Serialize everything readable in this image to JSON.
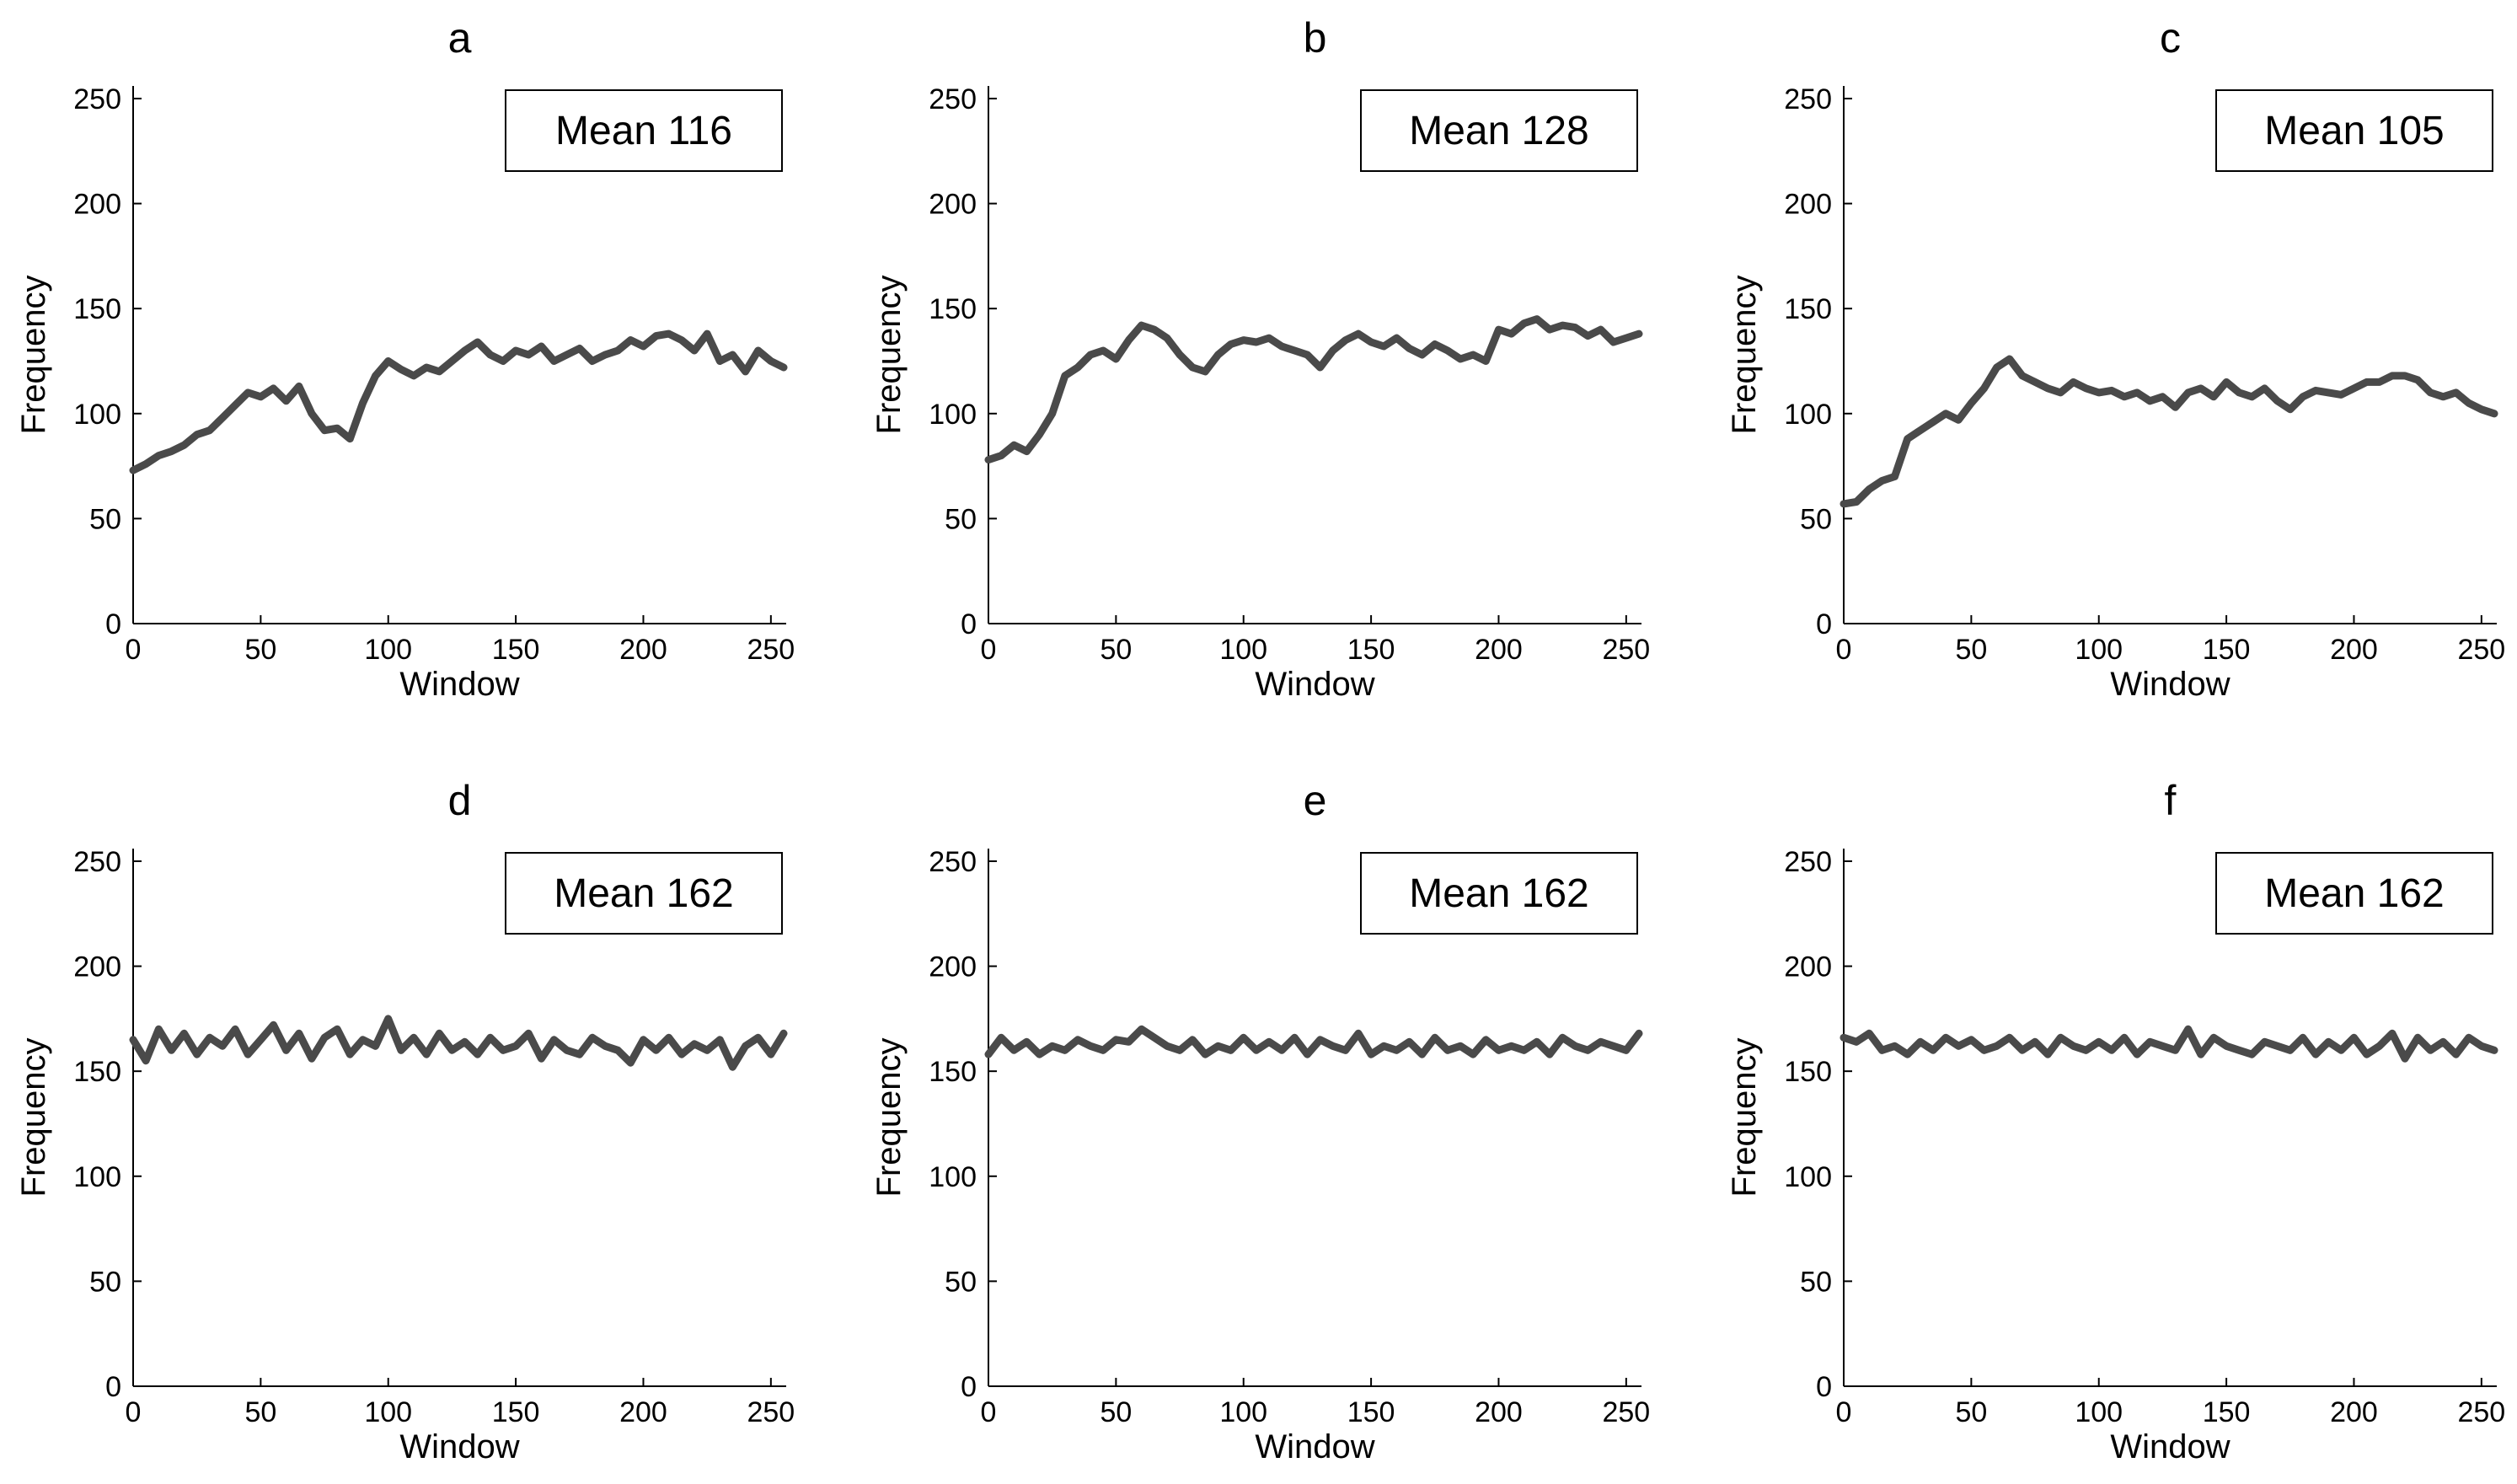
{
  "chart_data": [
    {
      "type": "line",
      "title": "a",
      "xlabel": "Window",
      "ylabel": "Frequency",
      "xlim": [
        0,
        256
      ],
      "ylim": [
        0,
        256
      ],
      "xticks": [
        "0",
        "50",
        "100",
        "150",
        "200",
        "250"
      ],
      "yticks": [
        "0",
        "50",
        "100",
        "150",
        "200",
        "250"
      ],
      "legend": "Mean 116",
      "series": [
        {
          "name": "Mean 116",
          "color": "#4a4a4a",
          "x": [
            0,
            5,
            10,
            15,
            20,
            25,
            30,
            35,
            40,
            45,
            50,
            55,
            60,
            65,
            70,
            75,
            80,
            85,
            90,
            95,
            100,
            105,
            110,
            115,
            120,
            125,
            130,
            135,
            140,
            145,
            150,
            155,
            160,
            165,
            170,
            175,
            180,
            185,
            190,
            195,
            200,
            205,
            210,
            215,
            220,
            225,
            230,
            235,
            240,
            245,
            250,
            255
          ],
          "y": [
            73,
            76,
            80,
            82,
            85,
            90,
            92,
            98,
            104,
            110,
            108,
            112,
            106,
            113,
            100,
            92,
            93,
            88,
            105,
            118,
            125,
            121,
            118,
            122,
            120,
            125,
            130,
            134,
            128,
            125,
            130,
            128,
            132,
            125,
            128,
            131,
            125,
            128,
            130,
            135,
            132,
            137,
            138,
            135,
            130,
            138,
            125,
            128,
            120,
            130,
            125,
            122
          ]
        }
      ]
    },
    {
      "type": "line",
      "title": "b",
      "xlabel": "Window",
      "ylabel": "Frequency",
      "xlim": [
        0,
        256
      ],
      "ylim": [
        0,
        256
      ],
      "xticks": [
        "0",
        "50",
        "100",
        "150",
        "200",
        "250"
      ],
      "yticks": [
        "0",
        "50",
        "100",
        "150",
        "200",
        "250"
      ],
      "legend": "Mean 128",
      "series": [
        {
          "name": "Mean 128",
          "color": "#4a4a4a",
          "x": [
            0,
            5,
            10,
            15,
            20,
            25,
            30,
            35,
            40,
            45,
            50,
            55,
            60,
            65,
            70,
            75,
            80,
            85,
            90,
            95,
            100,
            105,
            110,
            115,
            120,
            125,
            130,
            135,
            140,
            145,
            150,
            155,
            160,
            165,
            170,
            175,
            180,
            185,
            190,
            195,
            200,
            205,
            210,
            215,
            220,
            225,
            230,
            235,
            240,
            245,
            250,
            255
          ],
          "y": [
            78,
            80,
            85,
            82,
            90,
            100,
            118,
            122,
            128,
            130,
            126,
            135,
            142,
            140,
            136,
            128,
            122,
            120,
            128,
            133,
            135,
            134,
            136,
            132,
            130,
            128,
            122,
            130,
            135,
            138,
            134,
            132,
            136,
            131,
            128,
            133,
            130,
            126,
            128,
            125,
            140,
            138,
            143,
            145,
            140,
            142,
            141,
            137,
            140,
            134,
            136,
            138
          ]
        }
      ]
    },
    {
      "type": "line",
      "title": "c",
      "xlabel": "Window",
      "ylabel": "Frequency",
      "xlim": [
        0,
        256
      ],
      "ylim": [
        0,
        256
      ],
      "xticks": [
        "0",
        "50",
        "100",
        "150",
        "200",
        "250"
      ],
      "yticks": [
        "0",
        "50",
        "100",
        "150",
        "200",
        "250"
      ],
      "legend": "Mean 105",
      "series": [
        {
          "name": "Mean 105",
          "color": "#4a4a4a",
          "x": [
            0,
            5,
            10,
            15,
            20,
            25,
            30,
            35,
            40,
            45,
            50,
            55,
            60,
            65,
            70,
            75,
            80,
            85,
            90,
            95,
            100,
            105,
            110,
            115,
            120,
            125,
            130,
            135,
            140,
            145,
            150,
            155,
            160,
            165,
            170,
            175,
            180,
            185,
            190,
            195,
            200,
            205,
            210,
            215,
            220,
            225,
            230,
            235,
            240,
            245,
            250,
            255
          ],
          "y": [
            57,
            58,
            64,
            68,
            70,
            88,
            92,
            96,
            100,
            97,
            105,
            112,
            122,
            126,
            118,
            115,
            112,
            110,
            115,
            112,
            110,
            111,
            108,
            110,
            106,
            108,
            103,
            110,
            112,
            108,
            115,
            110,
            108,
            112,
            106,
            102,
            108,
            111,
            110,
            109,
            112,
            115,
            115,
            118,
            118,
            116,
            110,
            108,
            110,
            105,
            102,
            100
          ]
        }
      ]
    },
    {
      "type": "line",
      "title": "d",
      "xlabel": "Window",
      "ylabel": "Frequency",
      "xlim": [
        0,
        256
      ],
      "ylim": [
        0,
        256
      ],
      "xticks": [
        "0",
        "50",
        "100",
        "150",
        "200",
        "250"
      ],
      "yticks": [
        "0",
        "50",
        "100",
        "150",
        "200",
        "250"
      ],
      "legend": "Mean 162",
      "series": [
        {
          "name": "Mean 162",
          "color": "#4a4a4a",
          "x": [
            0,
            5,
            10,
            15,
            20,
            25,
            30,
            35,
            40,
            45,
            50,
            55,
            60,
            65,
            70,
            75,
            80,
            85,
            90,
            95,
            100,
            105,
            110,
            115,
            120,
            125,
            130,
            135,
            140,
            145,
            150,
            155,
            160,
            165,
            170,
            175,
            180,
            185,
            190,
            195,
            200,
            205,
            210,
            215,
            220,
            225,
            230,
            235,
            240,
            245,
            250,
            255
          ],
          "y": [
            165,
            155,
            170,
            160,
            168,
            158,
            166,
            162,
            170,
            158,
            165,
            172,
            160,
            168,
            156,
            166,
            170,
            158,
            165,
            162,
            175,
            160,
            166,
            158,
            168,
            160,
            164,
            158,
            166,
            160,
            162,
            168,
            156,
            165,
            160,
            158,
            166,
            162,
            160,
            154,
            165,
            160,
            166,
            158,
            163,
            160,
            165,
            152,
            162,
            166,
            158,
            168
          ]
        }
      ]
    },
    {
      "type": "line",
      "title": "e",
      "xlabel": "Window",
      "ylabel": "Frequency",
      "xlim": [
        0,
        256
      ],
      "ylim": [
        0,
        256
      ],
      "xticks": [
        "0",
        "50",
        "100",
        "150",
        "200",
        "250"
      ],
      "yticks": [
        "0",
        "50",
        "100",
        "150",
        "200",
        "250"
      ],
      "legend": "Mean 162",
      "series": [
        {
          "name": "Mean 162",
          "color": "#4a4a4a",
          "x": [
            0,
            5,
            10,
            15,
            20,
            25,
            30,
            35,
            40,
            45,
            50,
            55,
            60,
            65,
            70,
            75,
            80,
            85,
            90,
            95,
            100,
            105,
            110,
            115,
            120,
            125,
            130,
            135,
            140,
            145,
            150,
            155,
            160,
            165,
            170,
            175,
            180,
            185,
            190,
            195,
            200,
            205,
            210,
            215,
            220,
            225,
            230,
            235,
            240,
            245,
            250,
            255
          ],
          "y": [
            158,
            166,
            160,
            164,
            158,
            162,
            160,
            165,
            162,
            160,
            165,
            164,
            170,
            166,
            162,
            160,
            165,
            158,
            162,
            160,
            166,
            160,
            164,
            160,
            166,
            158,
            165,
            162,
            160,
            168,
            158,
            162,
            160,
            164,
            158,
            166,
            160,
            162,
            158,
            165,
            160,
            162,
            160,
            164,
            158,
            166,
            162,
            160,
            164,
            162,
            160,
            168
          ]
        }
      ]
    },
    {
      "type": "line",
      "title": "f",
      "xlabel": "Window",
      "ylabel": "Frequency",
      "xlim": [
        0,
        256
      ],
      "ylim": [
        0,
        256
      ],
      "xticks": [
        "0",
        "50",
        "100",
        "150",
        "200",
        "250"
      ],
      "yticks": [
        "0",
        "50",
        "100",
        "150",
        "200",
        "250"
      ],
      "legend": "Mean 162",
      "series": [
        {
          "name": "Mean 162",
          "color": "#4a4a4a",
          "x": [
            0,
            5,
            10,
            15,
            20,
            25,
            30,
            35,
            40,
            45,
            50,
            55,
            60,
            65,
            70,
            75,
            80,
            85,
            90,
            95,
            100,
            105,
            110,
            115,
            120,
            125,
            130,
            135,
            140,
            145,
            150,
            155,
            160,
            165,
            170,
            175,
            180,
            185,
            190,
            195,
            200,
            205,
            210,
            215,
            220,
            225,
            230,
            235,
            240,
            245,
            250,
            255
          ],
          "y": [
            166,
            164,
            168,
            160,
            162,
            158,
            164,
            160,
            166,
            162,
            165,
            160,
            162,
            166,
            160,
            164,
            158,
            166,
            162,
            160,
            164,
            160,
            166,
            158,
            164,
            162,
            160,
            170,
            158,
            166,
            162,
            160,
            158,
            164,
            162,
            160,
            166,
            158,
            164,
            160,
            166,
            158,
            162,
            168,
            156,
            166,
            160,
            164,
            158,
            166,
            162,
            160
          ]
        }
      ]
    }
  ]
}
